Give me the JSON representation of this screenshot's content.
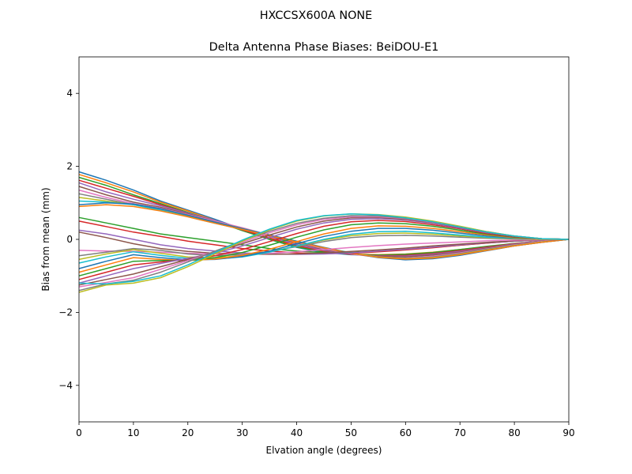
{
  "chart_data": {
    "type": "line",
    "suptitle": "HXCCSX600A      NONE",
    "title": "Delta Antenna Phase Biases: BeiDOU-E1",
    "xlabel": "Elvation angle (degrees)",
    "ylabel": "Bias from mean (mm)",
    "xlim": [
      0,
      90
    ],
    "ylim": [
      -5,
      5
    ],
    "xticks": [
      0,
      10,
      20,
      30,
      40,
      50,
      60,
      70,
      80,
      90
    ],
    "xtick_labels": [
      "0",
      "10",
      "20",
      "30",
      "40",
      "50",
      "60",
      "70",
      "80",
      "90"
    ],
    "yticks": [
      -4,
      -2,
      0,
      2,
      4
    ],
    "ytick_labels": [
      "−4",
      "−2",
      "0",
      "2",
      "4"
    ],
    "grid": false,
    "legend": "none",
    "x": [
      0,
      5,
      10,
      15,
      20,
      25,
      30,
      35,
      40,
      45,
      50,
      55,
      60,
      65,
      70,
      75,
      80,
      85,
      90
    ],
    "series_colors": [
      "#1f77b4",
      "#ff7f0e",
      "#2ca02c",
      "#d62728",
      "#9467bd",
      "#8c564b",
      "#e377c2",
      "#7f7f7f",
      "#bcbd22",
      "#17becf"
    ],
    "series_values": [
      [
        1.85,
        1.62,
        1.35,
        1.05,
        0.8,
        0.55,
        0.28,
        0.0,
        -0.22,
        -0.36,
        -0.42,
        -0.44,
        -0.42,
        -0.37,
        -0.29,
        -0.2,
        -0.12,
        -0.05,
        0.0
      ],
      [
        1.78,
        1.55,
        1.3,
        1.02,
        0.78,
        0.52,
        0.25,
        0.02,
        -0.2,
        -0.34,
        -0.4,
        -0.42,
        -0.4,
        -0.35,
        -0.28,
        -0.2,
        -0.12,
        -0.05,
        0.0
      ],
      [
        1.7,
        1.48,
        1.22,
        0.98,
        0.74,
        0.5,
        0.24,
        0.0,
        -0.21,
        -0.34,
        -0.41,
        -0.43,
        -0.41,
        -0.36,
        -0.28,
        -0.19,
        -0.11,
        -0.05,
        0.0
      ],
      [
        1.62,
        1.4,
        1.18,
        0.95,
        0.72,
        0.49,
        0.26,
        0.04,
        -0.17,
        -0.32,
        -0.41,
        -0.45,
        -0.44,
        -0.39,
        -0.31,
        -0.21,
        -0.12,
        -0.05,
        0.0
      ],
      [
        1.55,
        1.3,
        1.1,
        0.92,
        0.72,
        0.52,
        0.3,
        0.08,
        -0.14,
        -0.3,
        -0.4,
        -0.46,
        -0.46,
        -0.41,
        -0.33,
        -0.23,
        -0.13,
        -0.05,
        0.0
      ],
      [
        1.45,
        1.22,
        1.02,
        0.88,
        0.7,
        0.5,
        0.3,
        0.1,
        -0.1,
        -0.28,
        -0.4,
        -0.47,
        -0.48,
        -0.43,
        -0.35,
        -0.24,
        -0.14,
        -0.06,
        0.0
      ],
      [
        1.35,
        1.15,
        0.98,
        0.85,
        0.68,
        0.5,
        0.32,
        0.12,
        -0.08,
        -0.26,
        -0.4,
        -0.49,
        -0.51,
        -0.46,
        -0.37,
        -0.26,
        -0.15,
        -0.06,
        0.0
      ],
      [
        1.25,
        1.1,
        0.95,
        0.82,
        0.66,
        0.48,
        0.3,
        0.12,
        -0.06,
        -0.24,
        -0.38,
        -0.48,
        -0.52,
        -0.48,
        -0.39,
        -0.27,
        -0.16,
        -0.07,
        0.0
      ],
      [
        1.15,
        1.05,
        0.95,
        0.8,
        0.64,
        0.46,
        0.29,
        0.12,
        -0.05,
        -0.22,
        -0.37,
        -0.48,
        -0.53,
        -0.5,
        -0.41,
        -0.29,
        -0.17,
        -0.07,
        0.0
      ],
      [
        1.05,
        1.02,
        0.95,
        0.8,
        0.62,
        0.44,
        0.27,
        0.11,
        -0.06,
        -0.22,
        -0.37,
        -0.49,
        -0.55,
        -0.52,
        -0.43,
        -0.3,
        -0.18,
        -0.08,
        0.0
      ],
      [
        0.95,
        1.0,
        0.97,
        0.84,
        0.66,
        0.47,
        0.29,
        0.12,
        -0.05,
        -0.22,
        -0.38,
        -0.5,
        -0.56,
        -0.53,
        -0.44,
        -0.31,
        -0.18,
        -0.08,
        0.0
      ],
      [
        0.9,
        0.95,
        0.9,
        0.78,
        0.62,
        0.44,
        0.27,
        0.1,
        -0.07,
        -0.23,
        -0.38,
        -0.49,
        -0.54,
        -0.51,
        -0.42,
        -0.3,
        -0.18,
        -0.08,
        0.0
      ],
      [
        0.6,
        0.45,
        0.3,
        0.15,
        0.05,
        -0.05,
        -0.15,
        -0.25,
        -0.32,
        -0.36,
        -0.36,
        -0.33,
        -0.28,
        -0.22,
        -0.16,
        -0.1,
        -0.05,
        -0.02,
        0.0
      ],
      [
        0.5,
        0.35,
        0.2,
        0.08,
        -0.05,
        -0.15,
        -0.25,
        -0.32,
        -0.37,
        -0.39,
        -0.38,
        -0.34,
        -0.29,
        -0.23,
        -0.16,
        -0.1,
        -0.05,
        -0.02,
        0.0
      ],
      [
        0.25,
        0.15,
        0.0,
        -0.15,
        -0.25,
        -0.32,
        -0.37,
        -0.4,
        -0.41,
        -0.4,
        -0.37,
        -0.32,
        -0.27,
        -0.21,
        -0.15,
        -0.09,
        -0.05,
        -0.02,
        0.0
      ],
      [
        0.2,
        0.05,
        -0.12,
        -0.25,
        -0.33,
        -0.38,
        -0.4,
        -0.41,
        -0.4,
        -0.37,
        -0.33,
        -0.29,
        -0.24,
        -0.18,
        -0.13,
        -0.08,
        -0.04,
        -0.01,
        0.0
      ],
      [
        -0.3,
        -0.32,
        -0.33,
        -0.35,
        -0.38,
        -0.4,
        -0.4,
        -0.38,
        -0.34,
        -0.28,
        -0.22,
        -0.17,
        -0.13,
        -0.1,
        -0.07,
        -0.04,
        -0.02,
        -0.01,
        0.0
      ],
      [
        -0.45,
        -0.35,
        -0.25,
        -0.3,
        -0.4,
        -0.45,
        -0.42,
        -0.33,
        -0.2,
        -0.06,
        0.05,
        0.1,
        0.11,
        0.09,
        0.06,
        0.03,
        0.01,
        0.0,
        0.0
      ],
      [
        -0.55,
        -0.4,
        -0.28,
        -0.38,
        -0.48,
        -0.5,
        -0.45,
        -0.34,
        -0.18,
        -0.02,
        0.1,
        0.16,
        0.17,
        0.14,
        0.09,
        0.05,
        0.02,
        0.0,
        0.0
      ],
      [
        -0.65,
        -0.48,
        -0.34,
        -0.44,
        -0.52,
        -0.54,
        -0.48,
        -0.35,
        -0.18,
        0.0,
        0.14,
        0.21,
        0.22,
        0.18,
        0.12,
        0.06,
        0.03,
        0.01,
        0.0
      ],
      [
        -0.8,
        -0.6,
        -0.42,
        -0.5,
        -0.56,
        -0.55,
        -0.47,
        -0.32,
        -0.12,
        0.08,
        0.22,
        0.3,
        0.3,
        0.25,
        0.17,
        0.09,
        0.04,
        0.01,
        0.0
      ],
      [
        -0.9,
        -0.7,
        -0.5,
        -0.55,
        -0.58,
        -0.54,
        -0.44,
        -0.27,
        -0.06,
        0.15,
        0.3,
        0.37,
        0.36,
        0.3,
        0.21,
        0.12,
        0.05,
        0.01,
        0.0
      ],
      [
        -1.0,
        -0.8,
        -0.6,
        -0.58,
        -0.58,
        -0.5,
        -0.36,
        -0.16,
        0.06,
        0.26,
        0.4,
        0.45,
        0.43,
        0.36,
        0.25,
        0.14,
        0.06,
        0.02,
        0.0
      ],
      [
        -1.1,
        -0.9,
        -0.7,
        -0.62,
        -0.55,
        -0.45,
        -0.28,
        -0.06,
        0.16,
        0.36,
        0.48,
        0.52,
        0.49,
        0.4,
        0.29,
        0.16,
        0.07,
        0.02,
        0.0
      ],
      [
        -1.2,
        -1.0,
        -0.8,
        -0.66,
        -0.52,
        -0.38,
        -0.18,
        0.05,
        0.28,
        0.45,
        0.55,
        0.57,
        0.53,
        0.44,
        0.31,
        0.18,
        0.08,
        0.02,
        0.0
      ],
      [
        -1.25,
        -1.1,
        -0.95,
        -0.75,
        -0.55,
        -0.35,
        -0.12,
        0.12,
        0.34,
        0.5,
        0.59,
        0.6,
        0.55,
        0.46,
        0.33,
        0.19,
        0.08,
        0.02,
        0.0
      ],
      [
        -1.3,
        -1.18,
        -1.05,
        -0.82,
        -0.58,
        -0.33,
        -0.08,
        0.18,
        0.4,
        0.55,
        0.62,
        0.62,
        0.57,
        0.47,
        0.34,
        0.2,
        0.09,
        0.02,
        0.0
      ],
      [
        -1.4,
        -1.22,
        -1.12,
        -0.9,
        -0.62,
        -0.32,
        -0.04,
        0.22,
        0.44,
        0.58,
        0.65,
        0.64,
        0.58,
        0.48,
        0.35,
        0.21,
        0.09,
        0.02,
        0.0
      ],
      [
        -1.45,
        -1.25,
        -1.2,
        -1.05,
        -0.75,
        -0.4,
        -0.05,
        0.26,
        0.5,
        0.64,
        0.7,
        0.68,
        0.61,
        0.5,
        0.36,
        0.21,
        0.09,
        0.02,
        0.0
      ],
      [
        -1.2,
        -1.22,
        -1.15,
        -1.0,
        -0.7,
        -0.36,
        -0.02,
        0.28,
        0.52,
        0.65,
        0.7,
        0.67,
        0.59,
        0.48,
        0.34,
        0.2,
        0.09,
        0.02,
        0.0
      ]
    ]
  }
}
